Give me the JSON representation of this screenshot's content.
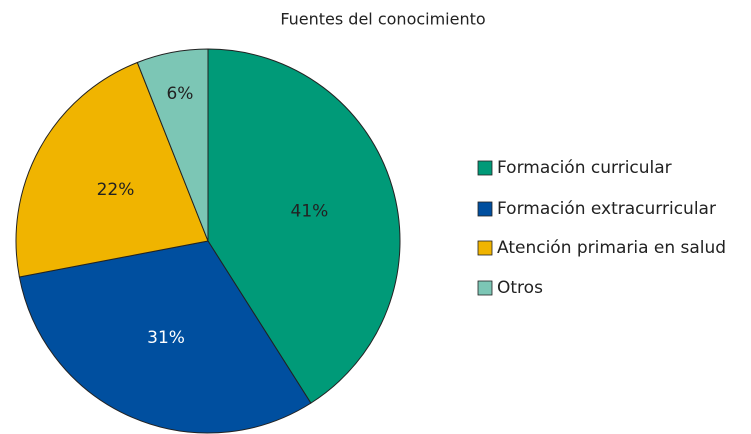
{
  "chart_data": {
    "type": "pie",
    "title": "Fuentes del conocimiento",
    "categories": [
      "Formación curricular",
      "Formación extracurricular",
      "Atención primaria en salud",
      "Otros"
    ],
    "values": [
      41,
      31,
      22,
      6
    ],
    "value_labels": [
      "41%",
      "31%",
      "22%",
      "6%"
    ],
    "colors": [
      "#009a78",
      "#004f9f",
      "#f0b400",
      "#7cc6b5"
    ],
    "legend": "right"
  }
}
